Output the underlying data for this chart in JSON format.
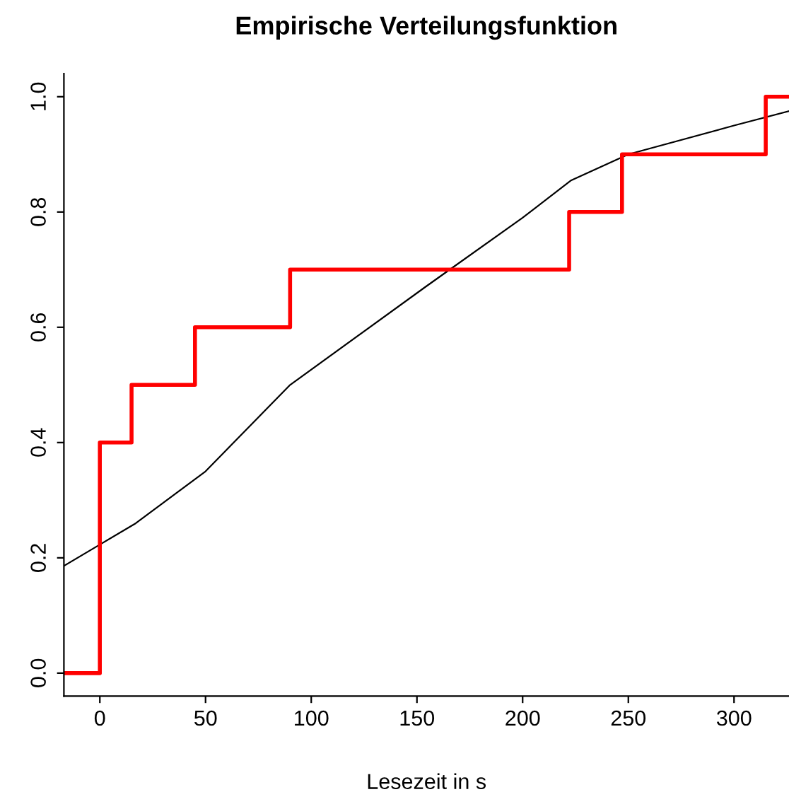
{
  "chart_data": {
    "type": "line",
    "title": "Empirische Verteilungsfunktion",
    "xlabel": "Lesezeit in s",
    "series": [
      {
        "color": "#000000",
        "x": [
          -17,
          0,
          17,
          50,
          90,
          154,
          200,
          223,
          250,
          300,
          326
        ],
        "values": [
          0.186,
          0.223,
          0.26,
          0.35,
          0.5,
          0.67,
          0.79,
          0.855,
          0.9,
          0.95,
          0.975
        ]
      },
      {
        "type": "step",
        "color": "#ff0000",
        "x": [
          -17,
          0,
          15,
          45,
          90,
          222,
          247,
          315,
          326
        ],
        "values": [
          0,
          0.4,
          0.5,
          0.6,
          0.7,
          0.8,
          0.9,
          1.0,
          1.0
        ]
      }
    ],
    "xlim": [
      -17,
      326
    ],
    "ylim": [
      -0.04,
      1.04
    ],
    "xticks": [
      0,
      50,
      100,
      150,
      200,
      250,
      300
    ],
    "yticks": [
      {
        "value": 0,
        "label": "0.0"
      },
      {
        "value": 0.2,
        "label": "0.2"
      },
      {
        "value": 0.4,
        "label": "0.4"
      },
      {
        "value": 0.6,
        "label": "0.6"
      },
      {
        "value": 0.8,
        "label": "0.8"
      },
      {
        "value": 1.0,
        "label": "1.0"
      }
    ],
    "grid": false,
    "legend": false,
    "marker": "none",
    "line_style": "solid"
  }
}
